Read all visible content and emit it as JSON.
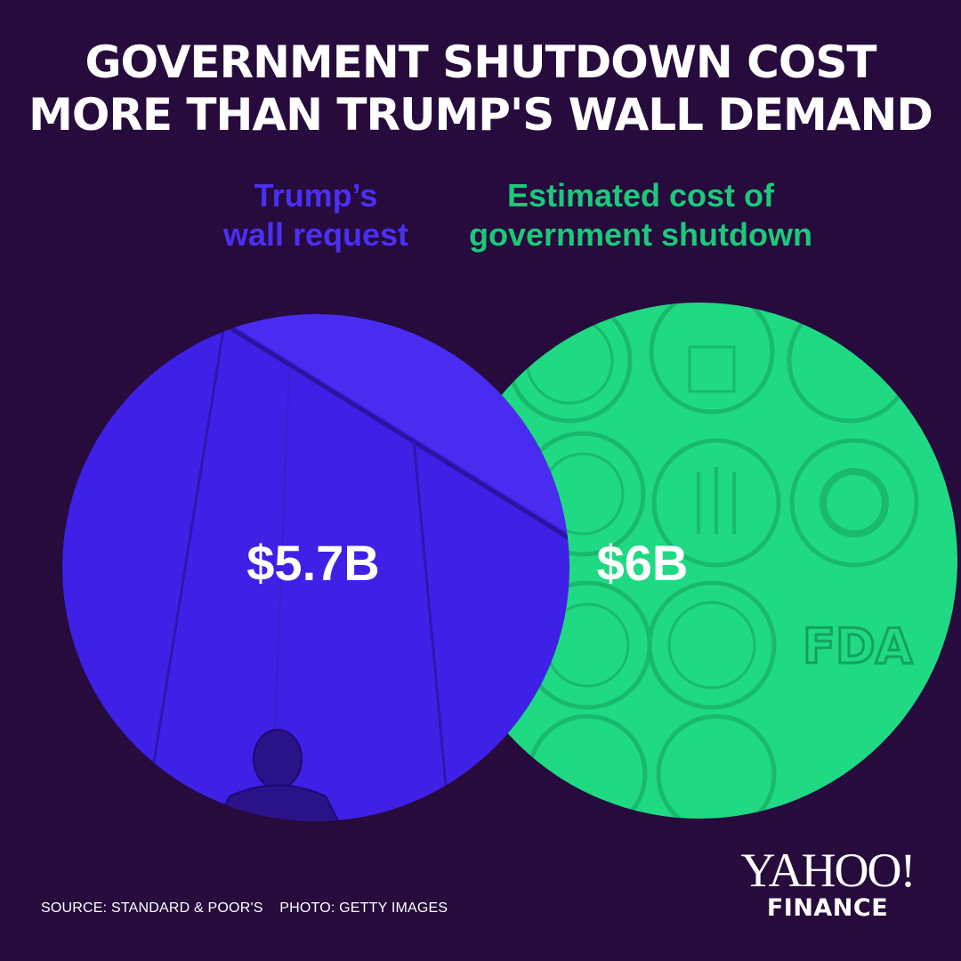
{
  "title": {
    "line1": "GOVERNMENT SHUTDOWN COST",
    "line2": "MORE THAN TRUMP'S WALL DEMAND"
  },
  "colors": {
    "background": "#260b3c",
    "wall": "#3e20e6",
    "shutdown": "#1fd983",
    "wall_label": "#4a2ff5",
    "shutdown_label": "#1cc97a",
    "text": "#ffffff"
  },
  "chart_data": {
    "type": "venn",
    "series": [
      {
        "name_lines": [
          "Trump’s",
          "wall request"
        ],
        "value": 5.7,
        "value_label": "$5.7B",
        "color": "#3e20e6"
      },
      {
        "name_lines": [
          "Estimated cost of",
          "government shutdown"
        ],
        "value": 6,
        "value_label": "$6B",
        "color": "#1fd983"
      }
    ]
  },
  "footer": {
    "source": "SOURCE: STANDARD & POOR'S",
    "photo": "PHOTO: GETTY IMAGES"
  },
  "logo": {
    "top": "YAHOO!",
    "bottom": "FINANCE"
  },
  "decor": {
    "seal_icons": [
      "state-seal-icon",
      "commerce-seal-icon",
      "homeland-seal-icon",
      "justice-seal-icon",
      "housing-seal-icon",
      "transportation-seal-icon",
      "treasury-seal-icon",
      "sec-seal-icon",
      "fda-logo-icon",
      "interior-seal-icon"
    ],
    "seal_text": {
      "fda": "FDA"
    }
  }
}
